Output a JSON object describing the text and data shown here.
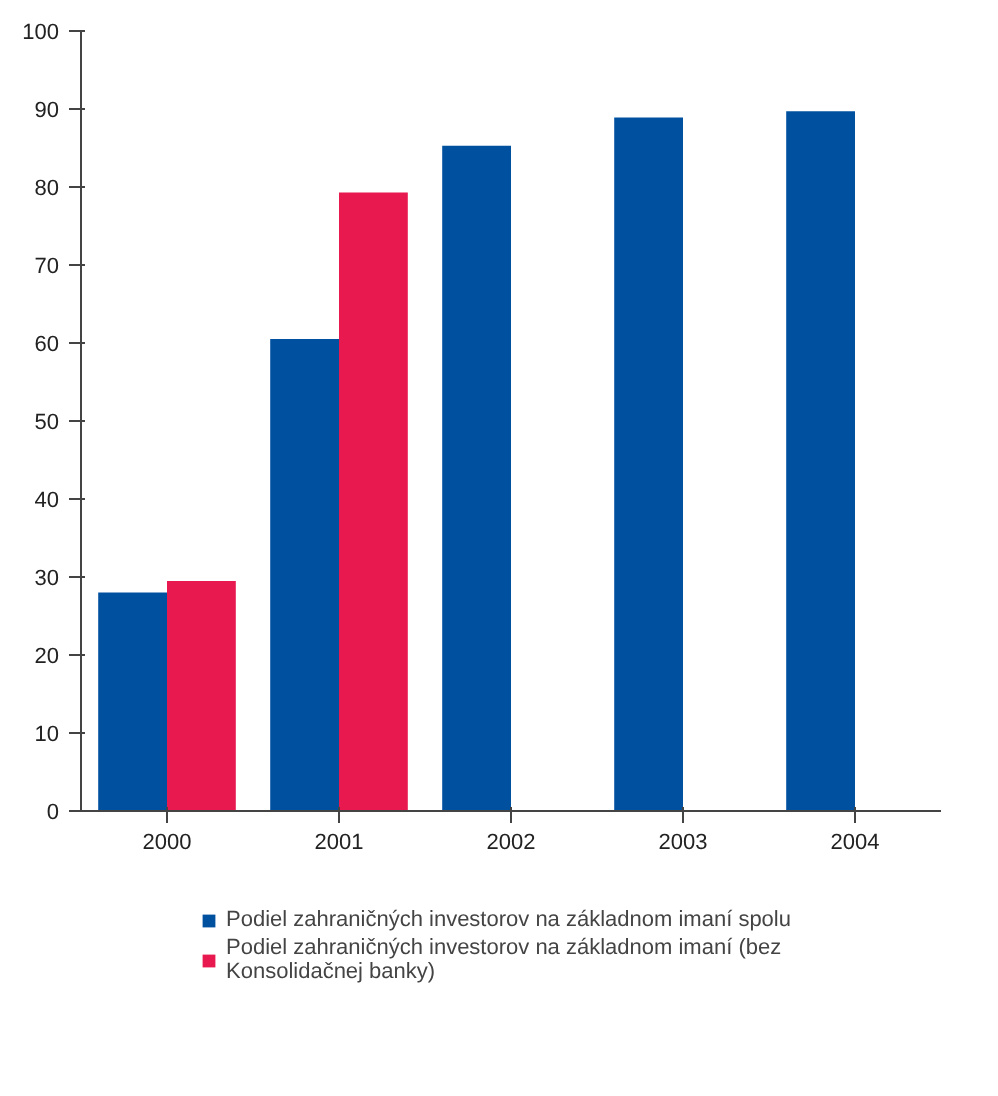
{
  "chart_data": {
    "type": "bar",
    "categories": [
      "2000",
      "2001",
      "2002",
      "2003",
      "2004"
    ],
    "series": [
      {
        "name": "Podiel zahraničných investorov na základnom imaní spolu",
        "color": "#0050a0",
        "values": [
          28,
          60.5,
          85.3,
          88.9,
          89.7
        ]
      },
      {
        "name": "Podiel zahraničných investorov na základnom imaní (bez Konsolidačnej banky)",
        "color": "#e8194f",
        "values": [
          29.5,
          79.3,
          null,
          null,
          null
        ]
      }
    ],
    "ylim": [
      0,
      100
    ],
    "yticks": [
      0,
      10,
      20,
      30,
      40,
      50,
      60,
      70,
      80,
      90,
      100
    ],
    "grid": false,
    "legend": "bottom"
  }
}
